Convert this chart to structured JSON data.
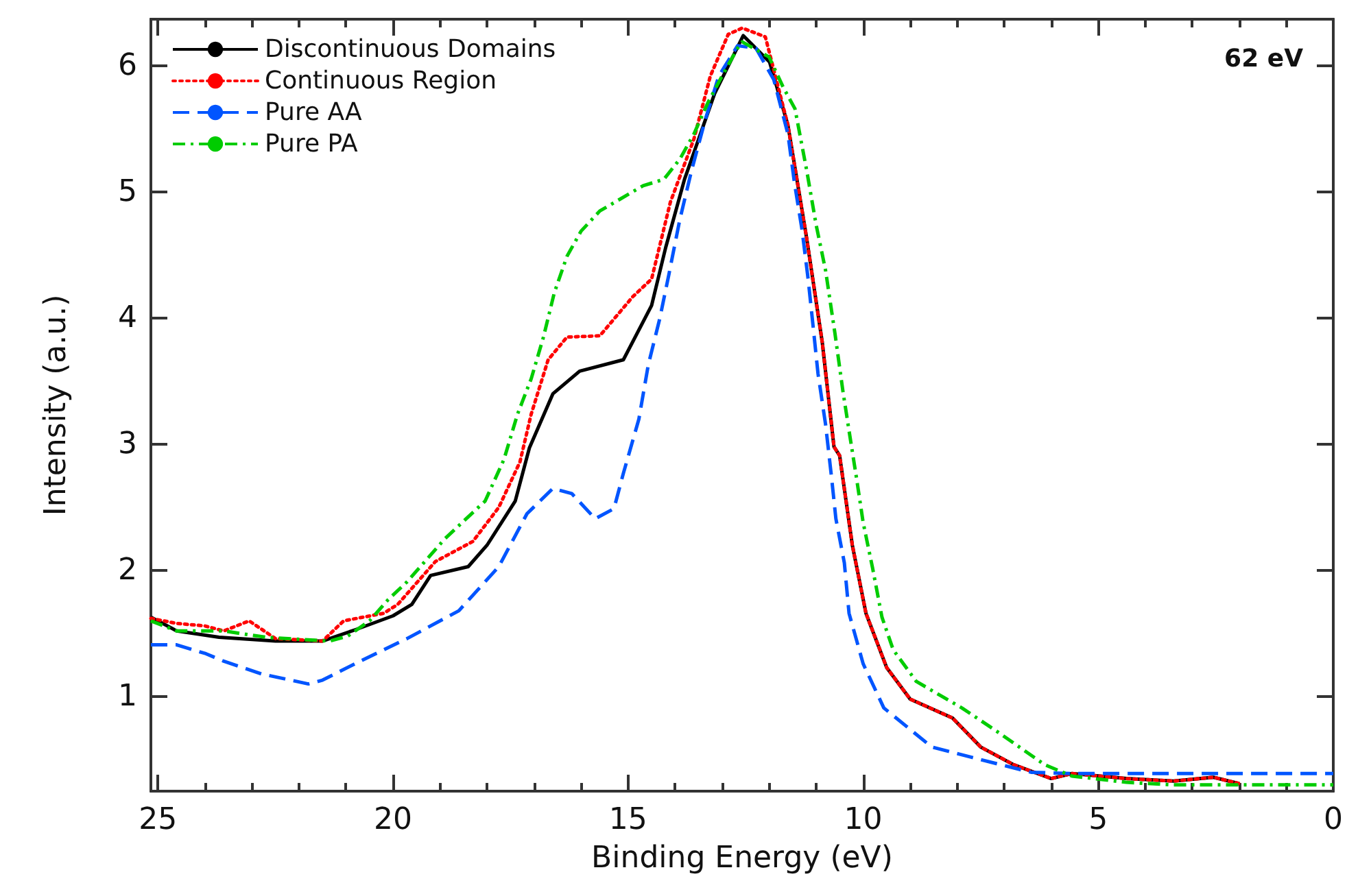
{
  "chart_data": {
    "type": "line",
    "xlabel": "Binding Energy (eV)",
    "ylabel": "Intensity (a.u.)",
    "annotations": [
      "62 eV"
    ],
    "xlim": [
      25.15,
      0
    ],
    "ylim": [
      0.25,
      6.37
    ],
    "xticks": [
      25,
      {
        "value": 24,
        "label": null
      },
      {
        "value": 23,
        "label": null
      },
      {
        "value": 22,
        "label": null
      },
      {
        "value": 21,
        "label": null
      },
      20,
      {
        "value": 19,
        "label": null
      },
      {
        "value": 18,
        "label": null
      },
      {
        "value": 17,
        "label": null
      },
      {
        "value": 16,
        "label": null
      },
      15,
      {
        "value": 14,
        "label": null
      },
      {
        "value": 13,
        "label": null
      },
      {
        "value": 12,
        "label": null
      },
      {
        "value": 11,
        "label": null
      },
      10,
      {
        "value": 9,
        "label": null
      },
      {
        "value": 8,
        "label": null
      },
      {
        "value": 7,
        "label": null
      },
      {
        "value": 6,
        "label": null
      },
      5,
      {
        "value": 4,
        "label": null
      },
      {
        "value": 3,
        "label": null
      },
      {
        "value": 2,
        "label": null
      },
      {
        "value": 1,
        "label": null
      },
      0
    ],
    "yticks": [
      1,
      2,
      3,
      4,
      5,
      6
    ],
    "grid": false,
    "legend": "top left",
    "marker": "none",
    "series": [
      {
        "name": "Discontinuous Domains",
        "color": "#000000",
        "line_style": "solid",
        "x": [
          25.15,
          24.6,
          23.7,
          22.5,
          21.5,
          20.8,
          20.0,
          19.6,
          19.2,
          18.4,
          18.0,
          17.4,
          17.1,
          16.6,
          16.03,
          15.1,
          14.5,
          14.2,
          13.8,
          13.16,
          12.55,
          11.99,
          11.6,
          11.2,
          10.87,
          10.62,
          10.5,
          10.23,
          9.94,
          9.5,
          9.0,
          8.1,
          7.5,
          6.8,
          6.0,
          5.56,
          4.4,
          3.4,
          2.55,
          2.0
        ],
        "values": [
          1.63,
          1.52,
          1.47,
          1.44,
          1.44,
          1.53,
          1.64,
          1.73,
          1.96,
          2.03,
          2.2,
          2.55,
          2.97,
          3.4,
          3.58,
          3.67,
          4.1,
          4.56,
          5.1,
          5.78,
          6.24,
          6.03,
          5.53,
          4.63,
          3.81,
          2.98,
          2.91,
          2.2,
          1.66,
          1.23,
          0.98,
          0.83,
          0.6,
          0.46,
          0.35,
          0.39,
          0.35,
          0.33,
          0.36,
          0.31
        ]
      },
      {
        "name": "Continuous Region",
        "color": "#ff0000",
        "line_style": "dotted",
        "x": [
          25.15,
          24.6,
          24.0,
          23.6,
          23.06,
          22.5,
          21.5,
          21.05,
          20.2,
          19.9,
          19.1,
          18.3,
          17.75,
          17.3,
          17.06,
          16.7,
          16.3,
          15.6,
          14.9,
          14.5,
          14.1,
          13.6,
          13.25,
          12.87,
          12.57,
          12.08,
          11.6,
          11.2,
          10.87,
          10.62,
          10.5,
          10.23,
          9.94,
          9.5,
          9.0,
          8.1,
          7.5,
          6.8,
          6.0,
          5.56,
          4.4,
          3.4,
          2.55,
          2.0
        ],
        "values": [
          1.62,
          1.58,
          1.56,
          1.52,
          1.6,
          1.46,
          1.44,
          1.6,
          1.66,
          1.73,
          2.07,
          2.23,
          2.5,
          2.86,
          3.24,
          3.67,
          3.85,
          3.86,
          4.17,
          4.31,
          4.92,
          5.42,
          5.92,
          6.25,
          6.3,
          6.23,
          5.53,
          4.63,
          3.81,
          2.98,
          2.91,
          2.2,
          1.66,
          1.23,
          0.98,
          0.83,
          0.6,
          0.46,
          0.35,
          0.39,
          0.35,
          0.33,
          0.36,
          0.31
        ]
      },
      {
        "name": "Pure AA",
        "color": "#0055ff",
        "line_style": "dashed",
        "x": [
          25.15,
          24.6,
          23.98,
          23.6,
          22.8,
          21.8,
          21.5,
          20.7,
          19.7,
          18.6,
          17.75,
          17.15,
          16.6,
          16.2,
          15.7,
          15.3,
          15.1,
          14.77,
          14.57,
          14.33,
          14.13,
          13.9,
          13.65,
          13.36,
          13.07,
          12.67,
          12.28,
          11.9,
          11.6,
          11.46,
          11.3,
          11.17,
          11.06,
          10.96,
          10.8,
          10.67,
          10.58,
          10.4,
          10.3,
          10.0,
          9.56,
          8.54,
          7.5,
          6.43,
          5.56,
          4.0,
          2.0,
          0.0
        ],
        "values": [
          1.41,
          1.41,
          1.34,
          1.28,
          1.18,
          1.1,
          1.13,
          1.28,
          1.46,
          1.68,
          2.03,
          2.45,
          2.65,
          2.61,
          2.41,
          2.49,
          2.77,
          3.2,
          3.63,
          3.99,
          4.35,
          4.78,
          5.17,
          5.57,
          5.92,
          6.16,
          6.14,
          5.89,
          5.46,
          5.07,
          4.7,
          4.31,
          3.92,
          3.56,
          3.16,
          2.73,
          2.41,
          2.06,
          1.66,
          1.26,
          0.91,
          0.6,
          0.5,
          0.4,
          0.39,
          0.39,
          0.39,
          0.39
        ]
      },
      {
        "name": "Pure PA",
        "color": "#00cc00",
        "line_style": "dashdot",
        "x": [
          25.15,
          24.6,
          23.6,
          22.7,
          21.35,
          20.96,
          20.5,
          20.1,
          19.7,
          18.9,
          18.5,
          18.04,
          17.64,
          17.35,
          17.06,
          16.8,
          16.57,
          16.3,
          16.0,
          15.6,
          14.68,
          14.24,
          13.9,
          13.6,
          13.3,
          13.0,
          12.67,
          12.57,
          12.0,
          11.7,
          11.45,
          11.2,
          11.0,
          10.8,
          10.6,
          10.43,
          10.28,
          10.14,
          10.0,
          9.8,
          9.6,
          9.36,
          8.87,
          7.9,
          7.1,
          6.14,
          5.56,
          4.4,
          3.42,
          1.46,
          0.0
        ],
        "values": [
          1.6,
          1.52,
          1.52,
          1.47,
          1.44,
          1.48,
          1.6,
          1.77,
          1.91,
          2.25,
          2.39,
          2.55,
          2.88,
          3.24,
          3.52,
          3.85,
          4.2,
          4.49,
          4.69,
          4.85,
          5.05,
          5.1,
          5.26,
          5.46,
          5.71,
          5.92,
          6.14,
          6.19,
          6.07,
          5.83,
          5.66,
          5.17,
          4.74,
          4.38,
          3.88,
          3.42,
          3.06,
          2.73,
          2.38,
          2.02,
          1.63,
          1.37,
          1.12,
          0.91,
          0.71,
          0.46,
          0.37,
          0.32,
          0.3,
          0.3,
          0.3
        ]
      }
    ]
  }
}
